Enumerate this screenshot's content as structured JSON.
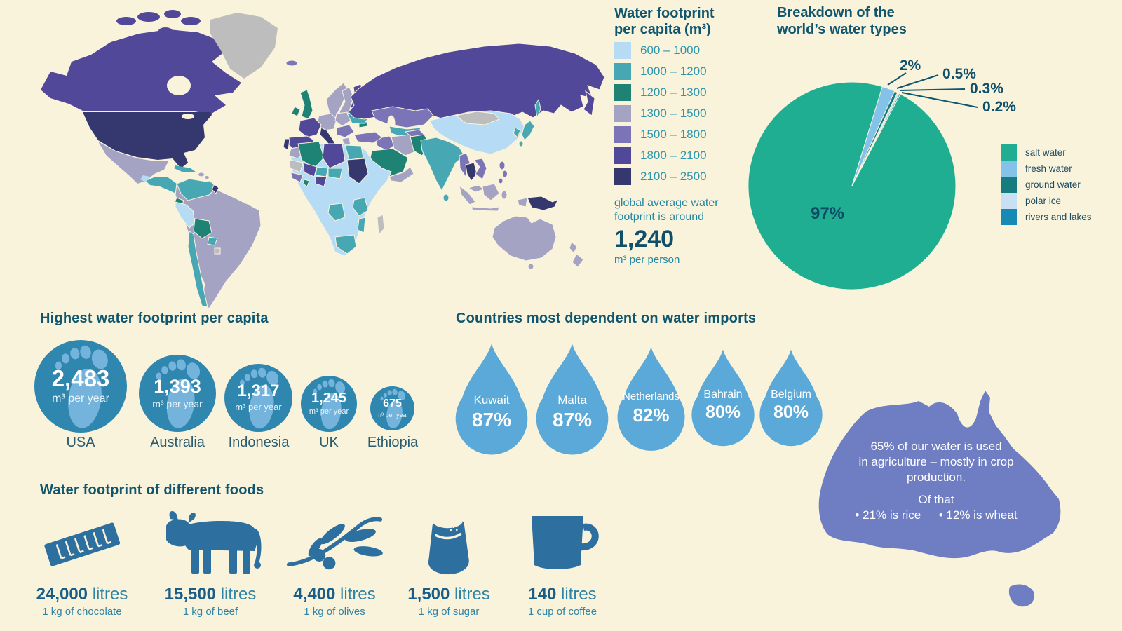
{
  "page": {
    "background": "#FAF3DC"
  },
  "map_legend": {
    "title_line1": "Water footprint",
    "title_line2": "per capita (m³)",
    "bins": [
      {
        "range": "600 – 1000",
        "color": "#B5DCF4"
      },
      {
        "range": "1000 – 1200",
        "color": "#47A8B4"
      },
      {
        "range": "1200 – 1300",
        "color": "#1E8374"
      },
      {
        "range": "1300 – 1500",
        "color": "#A4A3C4"
      },
      {
        "range": "1500 – 1800",
        "color": "#7B74B7"
      },
      {
        "range": "1800 – 2100",
        "color": "#52489A"
      },
      {
        "range": "2100 – 2500",
        "color": "#35386F"
      }
    ],
    "no_data_color": "#BDBDBD",
    "note_line1": "global average water",
    "note_line2": "footprint is around",
    "average_value": "1,240",
    "average_unit": "m³ per person"
  },
  "pie_section": {
    "title_line1": "Breakdown of the",
    "title_line2": "world’s water types",
    "center_label": "97%",
    "callouts": [
      "2%",
      "0.5%",
      "0.3%",
      "0.2%"
    ],
    "slices": [
      {
        "label": "salt water",
        "value": 97,
        "color": "#1FAE92"
      },
      {
        "label": "fresh water",
        "value": 2,
        "color": "#85C2EA"
      },
      {
        "label": "ground water",
        "value": 0.5,
        "color": "#157D80"
      },
      {
        "label": "polar ice",
        "value": 0.3,
        "color": "#C9DFF2"
      },
      {
        "label": "rivers and lakes",
        "value": 0.2,
        "color": "#1689B5"
      }
    ]
  },
  "footprints": {
    "heading": "Highest water footprint per capita",
    "unit": "m³ per year",
    "items": [
      {
        "country": "USA",
        "value": "2,483"
      },
      {
        "country": "Australia",
        "value": "1,393"
      },
      {
        "country": "Indonesia",
        "value": "1,317"
      },
      {
        "country": "UK",
        "value": "1,245"
      },
      {
        "country": "Ethiopia",
        "value": "675"
      }
    ]
  },
  "imports": {
    "heading": "Countries most dependent on water imports",
    "items": [
      {
        "country": "Kuwait",
        "pct": "87%"
      },
      {
        "country": "Malta",
        "pct": "87%"
      },
      {
        "country": "Netherlands",
        "pct": "82%"
      },
      {
        "country": "Bahrain",
        "pct": "80%"
      },
      {
        "country": "Belgium",
        "pct": "80%"
      }
    ]
  },
  "australia_fact": {
    "line1": "65% of our water is used",
    "line2": "in agriculture – mostly in crop",
    "line3": "production.",
    "line4": "Of that",
    "line5": "• 21% is rice  • 12% is wheat"
  },
  "foods": {
    "heading": "Water footprint of different foods",
    "items": [
      {
        "value": "24,000",
        "unit": " litres",
        "caption": "1 kg of chocolate",
        "icon": "chocolate-bar-icon"
      },
      {
        "value": "15,500",
        "unit": " litres",
        "caption": "1 kg of beef",
        "icon": "cow-icon"
      },
      {
        "value": "4,400",
        "unit": " litres",
        "caption": "1 kg of olives",
        "icon": "olive-branch-icon"
      },
      {
        "value": "1,500",
        "unit": " litres",
        "caption": "1 kg of sugar",
        "icon": "sugar-bag-icon"
      },
      {
        "value": "140",
        "unit": " litres",
        "caption": "1 cup of coffee",
        "icon": "coffee-mug-icon"
      }
    ]
  },
  "chart_data": [
    {
      "type": "heatmap",
      "subtype": "world-choropleth-map",
      "title": "Water footprint per capita (m³)",
      "bins": [
        {
          "range": "600 – 1000",
          "color": "#B5DCF4"
        },
        {
          "range": "1000 – 1200",
          "color": "#47A8B4"
        },
        {
          "range": "1200 – 1300",
          "color": "#1E8374"
        },
        {
          "range": "1300 – 1500",
          "color": "#A4A3C4"
        },
        {
          "range": "1500 – 1800",
          "color": "#7B74B7"
        },
        {
          "range": "1800 – 2100",
          "color": "#52489A"
        },
        {
          "range": "2100 – 2500",
          "color": "#35386F"
        }
      ],
      "no_data_color": "#BDBDBD",
      "annotation": "global average water footprint is around 1,240 m³ per person",
      "readable_examples": {
        "USA": "2100 – 2500",
        "Canada": "1800 – 2100",
        "Russia": "1800 – 2100",
        "China": "600 – 1000",
        "India": "1000 – 1200",
        "Brazil": "1300 – 1500",
        "Australia": "1300 – 1500",
        "Greenland": "no data",
        "Mongolia": "no data"
      }
    },
    {
      "type": "pie",
      "title": "Breakdown of the world’s water types",
      "labels": [
        "salt water",
        "fresh water",
        "ground water",
        "polar ice",
        "rivers and lakes"
      ],
      "values": [
        97,
        2,
        0.5,
        0.3,
        0.2
      ],
      "colors": [
        "#1FAE92",
        "#85C2EA",
        "#157D80",
        "#C9DFF2",
        "#1689B5"
      ],
      "callout_labels": [
        "2%",
        "0.5%",
        "0.3%",
        "0.2%"
      ],
      "center_label": "97%",
      "legend_position": "right",
      "start_angle_deg": 17
    },
    {
      "type": "bar",
      "subtype": "footprint-circles",
      "title": "Highest water footprint per capita",
      "categories": [
        "USA",
        "Australia",
        "Indonesia",
        "UK",
        "Ethiopia"
      ],
      "values": [
        2483,
        1393,
        1317,
        1245,
        675
      ],
      "unit": "m³ per year"
    },
    {
      "type": "bar",
      "subtype": "water-drops",
      "title": "Countries most dependent on water imports",
      "categories": [
        "Kuwait",
        "Malta",
        "Netherlands",
        "Bahrain",
        "Belgium"
      ],
      "values": [
        87,
        87,
        82,
        80,
        80
      ],
      "unit": "%"
    },
    {
      "type": "bar",
      "subtype": "food-icons",
      "title": "Water footprint of different foods",
      "categories": [
        "1 kg of chocolate",
        "1 kg of beef",
        "1 kg of olives",
        "1 kg of sugar",
        "1 cup of coffee"
      ],
      "values": [
        24000,
        15500,
        4400,
        1500,
        140
      ],
      "unit": "litres"
    },
    {
      "type": "table",
      "subtype": "australia-annotation",
      "text": "65% of our water is used in agriculture – mostly in crop production. Of that • 21% is rice • 12% is wheat"
    }
  ]
}
